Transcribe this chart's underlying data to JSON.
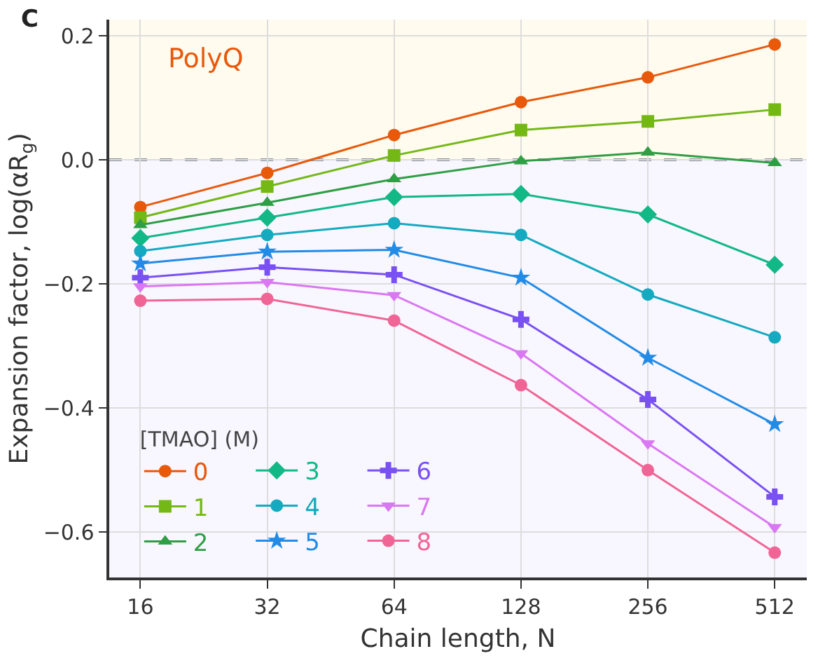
{
  "chart_data": {
    "type": "line",
    "xlabel": "Chain length, N",
    "ylabel": "Expansion factor, log(αR$_{g}$)",
    "legend_title": "[TMAO] (M)",
    "annotations": [
      "C",
      "PolyQ"
    ],
    "x": [
      16,
      32,
      64,
      128,
      256,
      512
    ],
    "series": [
      {
        "name": "0",
        "color": "#e8590c",
        "marker": "circle",
        "values": [
          -0.076,
          -0.021,
          0.04,
          0.093,
          0.133,
          0.186
        ]
      },
      {
        "name": "1",
        "color": "#74b816",
        "marker": "square",
        "values": [
          -0.093,
          -0.043,
          0.007,
          0.048,
          0.062,
          0.081
        ]
      },
      {
        "name": "2",
        "color": "#2f9e44",
        "marker": "triangle",
        "values": [
          -0.105,
          -0.069,
          -0.031,
          -0.002,
          0.012,
          -0.005
        ]
      },
      {
        "name": "3",
        "color": "#12b886",
        "marker": "diamond",
        "values": [
          -0.126,
          -0.093,
          -0.06,
          -0.055,
          -0.088,
          -0.169
        ]
      },
      {
        "name": "4",
        "color": "#15aabf",
        "marker": "circle",
        "values": [
          -0.147,
          -0.121,
          -0.102,
          -0.121,
          -0.217,
          -0.286
        ]
      },
      {
        "name": "5",
        "color": "#228be6",
        "marker": "star",
        "values": [
          -0.167,
          -0.148,
          -0.145,
          -0.19,
          -0.319,
          -0.426
        ]
      },
      {
        "name": "6",
        "color": "#7950f2",
        "marker": "cross",
        "values": [
          -0.19,
          -0.173,
          -0.185,
          -0.257,
          -0.386,
          -0.543
        ]
      },
      {
        "name": "7",
        "color": "#da77f2",
        "marker": "triangle-down",
        "values": [
          -0.204,
          -0.197,
          -0.218,
          -0.312,
          -0.457,
          -0.592
        ]
      },
      {
        "name": "8",
        "color": "#f06595",
        "marker": "circle",
        "values": [
          -0.227,
          -0.224,
          -0.259,
          -0.363,
          -0.5,
          -0.633
        ]
      }
    ],
    "log": "x",
    "xlim": [
      13.5,
      610
    ],
    "xticks": [
      16,
      32,
      64,
      128,
      256,
      512
    ],
    "ylim": [
      -0.673,
      0.226
    ],
    "yticks": [
      {
        "value": 0.2,
        "label": "0.2"
      },
      {
        "value": 0.0,
        "label": "0.0"
      },
      {
        "value": -0.2,
        "label": "−0.2"
      },
      {
        "value": -0.4,
        "label": "−0.4"
      },
      {
        "value": -0.6,
        "label": "−0.6"
      }
    ],
    "ref_lines": [
      {
        "axis": "y",
        "value": 0,
        "color": "#868e96",
        "line_style": "dashed"
      }
    ],
    "bands": [
      {
        "axis": "y",
        "from": 0,
        "to": 0.226,
        "color": "#fffbee"
      },
      {
        "axis": "y",
        "from": -0.673,
        "to": 0,
        "color": "#f8f7ff"
      }
    ],
    "grid": true,
    "legend": "bottom left",
    "line_style": "solid"
  }
}
